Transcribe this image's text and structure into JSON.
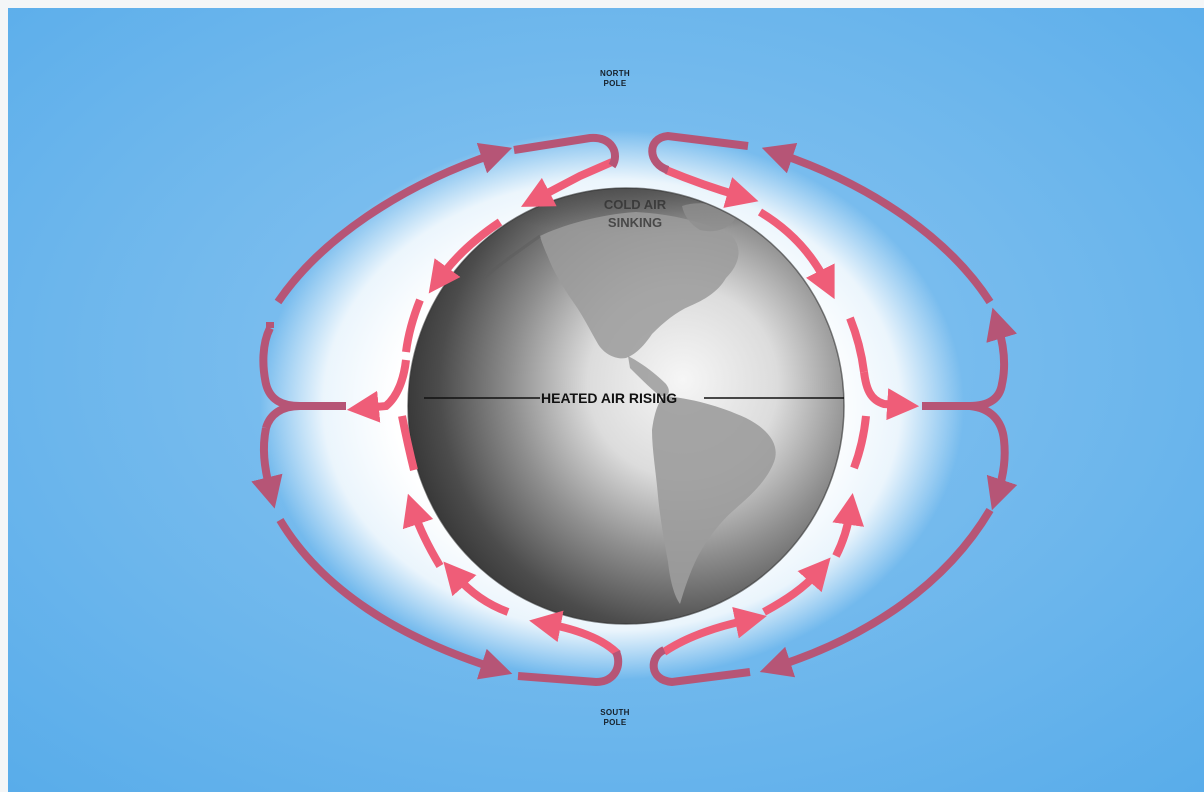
{
  "labels": {
    "north_pole": [
      "NORTH",
      "POLE"
    ],
    "south_pole": [
      "SOUTH",
      "POLE"
    ],
    "heated_air": "HEATED AIR RISING",
    "cold_air": [
      "COLD AIR",
      "SINKING"
    ]
  },
  "colors": {
    "sky": "#5aaeea",
    "halo": "#ffffff",
    "inner_arrows": "#ef5d78",
    "outer_arrows": "#b65576",
    "globe_dark": "#3a3a3a",
    "globe_light": "#f2f2f2",
    "land": "#9a9a9a"
  }
}
